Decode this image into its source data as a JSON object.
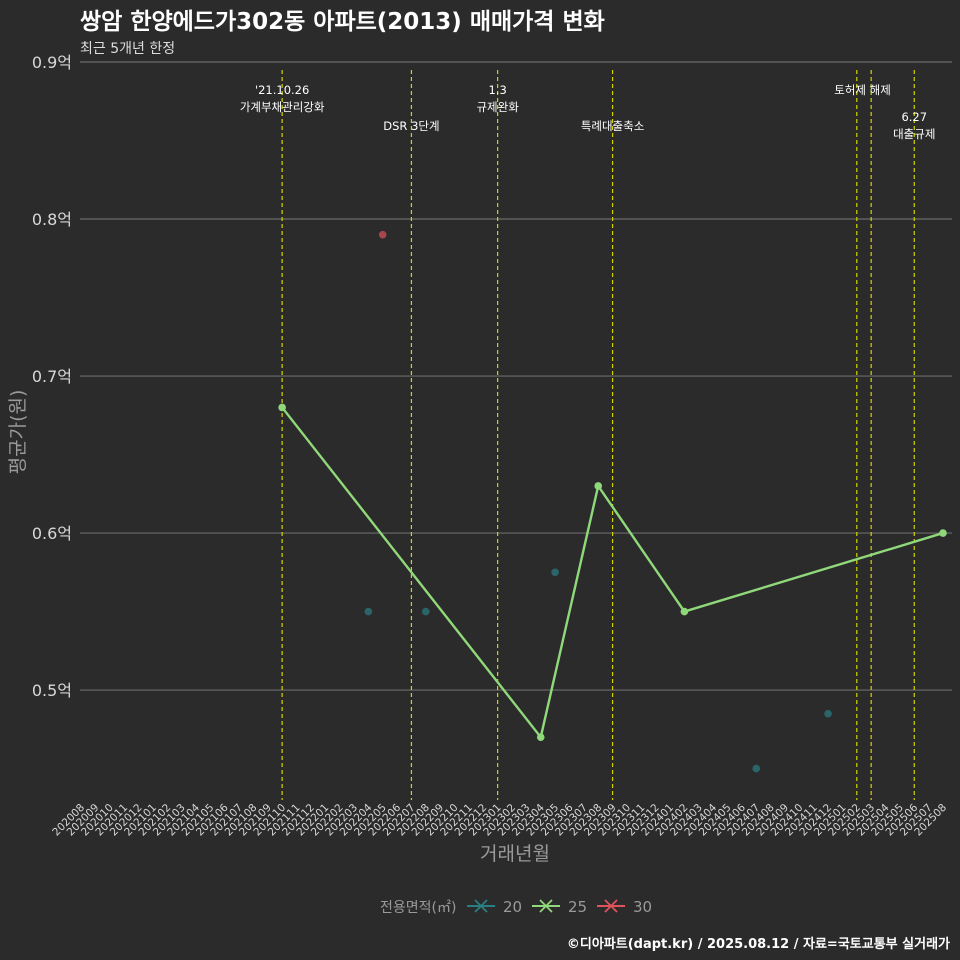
{
  "chart_data": {
    "type": "line",
    "title": "쌍암 한양에드가302동 아파트(2013) 매매가격 변화",
    "subtitle": "최근 5개년 한정",
    "xlabel": "거래년월",
    "ylabel": "평균가(원)",
    "y_ticks": [
      "0.5억",
      "0.6억",
      "0.7억",
      "0.8억",
      "0.9억"
    ],
    "y_tick_values": [
      0.5,
      0.6,
      0.7,
      0.8,
      0.9
    ],
    "ylim": [
      0.43,
      0.9
    ],
    "x_categories": [
      "202008",
      "202009",
      "202010",
      "202011",
      "202012",
      "202101",
      "202102",
      "202103",
      "202104",
      "202105",
      "202106",
      "202107",
      "202108",
      "202109",
      "202110",
      "202111",
      "202112",
      "202201",
      "202202",
      "202203",
      "202204",
      "202205",
      "202206",
      "202207",
      "202208",
      "202209",
      "202210",
      "202211",
      "202212",
      "202301",
      "202302",
      "202303",
      "202304",
      "202305",
      "202306",
      "202307",
      "202308",
      "202309",
      "202310",
      "202311",
      "202312",
      "202401",
      "202402",
      "202403",
      "202404",
      "202405",
      "202406",
      "202407",
      "202408",
      "202409",
      "202410",
      "202411",
      "202412",
      "202501",
      "202502",
      "202503",
      "202504",
      "202505",
      "202506",
      "202507",
      "202508"
    ],
    "legend": {
      "title": "전용면적(㎡)",
      "placement": "bottom"
    },
    "series": [
      {
        "name": "20",
        "color": "#2a7f84",
        "line": false,
        "points": [
          {
            "x": "202204",
            "y": 0.55
          },
          {
            "x": "202208",
            "y": 0.55
          },
          {
            "x": "202305",
            "y": 0.575
          },
          {
            "x": "202407",
            "y": 0.45
          },
          {
            "x": "202412",
            "y": 0.485
          }
        ]
      },
      {
        "name": "25",
        "color": "#90d97a",
        "line": true,
        "points": [
          {
            "x": "202110",
            "y": 0.68
          },
          {
            "x": "202304",
            "y": 0.47
          },
          {
            "x": "202308",
            "y": 0.63
          },
          {
            "x": "202402",
            "y": 0.55
          },
          {
            "x": "202508",
            "y": 0.6
          }
        ]
      },
      {
        "name": "30",
        "color": "#e0535c",
        "line": false,
        "points": [
          {
            "x": "202205",
            "y": 0.79
          }
        ]
      }
    ],
    "events": [
      {
        "x": "202110",
        "lines": [
          "'21.10.26",
          "가계부채관리강화"
        ],
        "row": 0
      },
      {
        "x": "202207",
        "lines": [
          "DSR 3단계"
        ],
        "row": 1
      },
      {
        "x": "202301",
        "lines": [
          "1.3",
          "규제완화"
        ],
        "row": 0
      },
      {
        "x": "202309",
        "lines": [
          "특례대출축소"
        ],
        "row": 1
      },
      {
        "x": "202502",
        "lines": [],
        "row": 0
      },
      {
        "x": "202503",
        "lines": [
          "토허제 해제"
        ],
        "row": 0,
        "label_offset": -0.6
      },
      {
        "x": "202506",
        "lines": [
          "6.27",
          "대출규제"
        ],
        "row": 2
      }
    ],
    "caption": "©디아파트(dapt.kr) / 2025.08.12 / 자료=국토교통부 실거래가",
    "grid": true
  }
}
